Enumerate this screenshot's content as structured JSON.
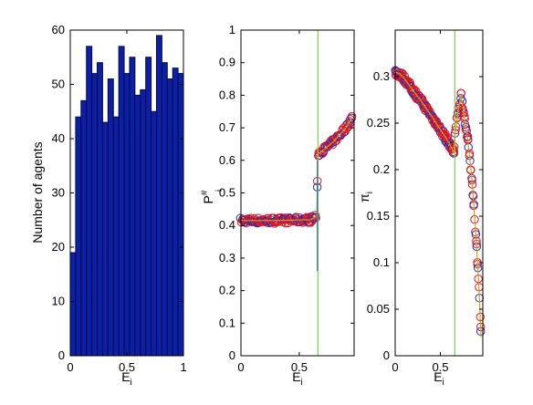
{
  "colors": {
    "bar_fill": "#0b1fa8",
    "bar_edge": "#0a0a3a",
    "marker_edge": "#e8141c",
    "marker_inner": "#1f2fb8",
    "threshold_line": "#7ad34a",
    "curve": "#c8a01e"
  },
  "chart_data": [
    {
      "type": "bar",
      "title": "",
      "xlabel": "E",
      "xlabel_sub": "i",
      "ylabel": "Number of agents",
      "xlim": [
        0,
        1
      ],
      "ylim": [
        0,
        60
      ],
      "xticks": [
        "0",
        "0.5",
        "1"
      ],
      "yticks": [
        "0",
        "10",
        "20",
        "30",
        "40",
        "50",
        "60"
      ],
      "bin_edges": [
        0,
        0.0476,
        0.0952,
        0.1429,
        0.1905,
        0.2381,
        0.2857,
        0.3333,
        0.381,
        0.4286,
        0.4762,
        0.5238,
        0.5714,
        0.619,
        0.6667,
        0.7143,
        0.7619,
        0.8095,
        0.8571,
        0.9048,
        0.9524,
        1.0
      ],
      "values": [
        19,
        44,
        47,
        57,
        52,
        54,
        43,
        51,
        44,
        57,
        52,
        55,
        48,
        49,
        55,
        45,
        59,
        54,
        51,
        53,
        52,
        26
      ],
      "grid": false
    },
    {
      "type": "scatter",
      "title": "",
      "xlabel": "E",
      "xlabel_sub": "i",
      "ylabel": "P",
      "ylabel_sup": "#",
      "ylabel_sub": "i",
      "xlim": [
        0,
        0.97
      ],
      "ylim": [
        0,
        1
      ],
      "xticks": [
        "0",
        "0.5"
      ],
      "yticks": [
        "0",
        "0.1",
        "0.2",
        "0.3",
        "0.4",
        "0.5",
        "0.6",
        "0.7",
        "0.8",
        "0.9",
        "1"
      ],
      "threshold_x": 0.66,
      "jump_segment": {
        "x": 0.655,
        "y": [
          0.26,
          0.6
        ]
      },
      "curve": [
        [
          0.0,
          0.415
        ],
        [
          0.2,
          0.415
        ],
        [
          0.4,
          0.416
        ],
        [
          0.6,
          0.418
        ],
        [
          0.65,
          0.43
        ],
        [
          0.66,
          0.62
        ],
        [
          0.7,
          0.63
        ],
        [
          0.8,
          0.66
        ],
        [
          0.9,
          0.7
        ],
        [
          0.95,
          0.73
        ]
      ],
      "grid": false
    },
    {
      "type": "scatter",
      "title": "",
      "xlabel": "E",
      "xlabel_sub": "i",
      "ylabel": "π",
      "ylabel_sub": "i",
      "xlim": [
        0,
        0.97
      ],
      "ylim": [
        0,
        0.35
      ],
      "xticks": [
        "0",
        "0.5"
      ],
      "yticks": [
        "0",
        "0.05",
        "0.1",
        "0.15",
        "0.2",
        "0.25",
        "0.3"
      ],
      "threshold_x": 0.66,
      "curve": [
        [
          0.0,
          0.305
        ],
        [
          0.05,
          0.303
        ],
        [
          0.1,
          0.298
        ],
        [
          0.2,
          0.285
        ],
        [
          0.3,
          0.272
        ],
        [
          0.4,
          0.258
        ],
        [
          0.5,
          0.243
        ],
        [
          0.6,
          0.228
        ],
        [
          0.65,
          0.218
        ],
        [
          0.66,
          0.236
        ],
        [
          0.7,
          0.265
        ],
        [
          0.73,
          0.28
        ],
        [
          0.76,
          0.26
        ],
        [
          0.8,
          0.235
        ],
        [
          0.85,
          0.19
        ],
        [
          0.9,
          0.12
        ],
        [
          0.93,
          0.07
        ],
        [
          0.95,
          0.02
        ]
      ],
      "grid": false
    }
  ]
}
